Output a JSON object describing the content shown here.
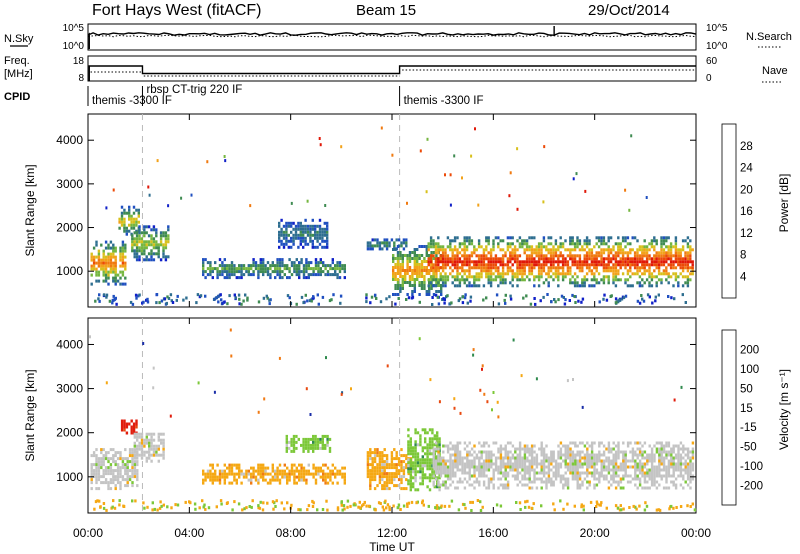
{
  "header": {
    "station": "Fort Hays West (fitACF)",
    "beam": "Beam 15",
    "date": "29/Oct/2014"
  },
  "sky_panel": {
    "left_label": "N.Sky",
    "left_ticks": [
      "10^5",
      "10^0"
    ],
    "right_label": "N.Search",
    "right_ticks": [
      "10^5",
      "10^0"
    ]
  },
  "freq_panel": {
    "left_label_line1": "Freq.",
    "left_label_line2": "[MHz]",
    "left_ticks": [
      "18",
      "8"
    ],
    "right_label": "Nave",
    "right_ticks": [
      "60",
      "0"
    ]
  },
  "cpid_panel": {
    "label": "CPID",
    "segments": [
      {
        "start_hour": 0.0,
        "text": "themis -3300 IF"
      },
      {
        "start_hour": 2.15,
        "text": "rbsp CT-trig 220 IF"
      },
      {
        "start_hour": 12.3,
        "text": "themis -3300 IF"
      }
    ]
  },
  "time_axis": {
    "ticks": [
      "00:00",
      "04:00",
      "08:00",
      "12:00",
      "16:00",
      "20:00",
      "00:00"
    ],
    "label": "Time UT"
  },
  "power_panel": {
    "ylabel": "Slant Range [km]",
    "yticks": [
      "4000",
      "3000",
      "2000",
      "1000"
    ],
    "colorbar_label": "Power [dB]",
    "colorbar_ticks": [
      "28",
      "24",
      "20",
      "16",
      "12",
      "8",
      "4"
    ],
    "colors": [
      "#1020c8",
      "#2050c0",
      "#2e6e90",
      "#3f8b52",
      "#75b640",
      "#d8c01c",
      "#f2a21a",
      "#f07a10",
      "#ec4a08",
      "#e01808"
    ]
  },
  "velocity_panel": {
    "ylabel": "Slant Range [km]",
    "yticks": [
      "4000",
      "3000",
      "2000",
      "1000"
    ],
    "colorbar_label": "Velocity [m s⁻¹]",
    "colorbar_ticks": [
      "200",
      "100",
      "50",
      "15",
      "-15",
      "-50",
      "-100",
      "-200"
    ],
    "colors": [
      "#1a2ea8",
      "#1f5c8e",
      "#2f8a4e",
      "#7cc838",
      "#c4c4c4",
      "#f5a814",
      "#f07a14",
      "#e84a10",
      "#e01c0c"
    ]
  },
  "chart_data": [
    {
      "type": "heatmap",
      "title": "Power [dB]",
      "xlabel": "Time UT",
      "ylabel": "Slant Range [km]",
      "xlim_hours": [
        0,
        24
      ],
      "ylim_km": [
        180,
        4600
      ],
      "clim": [
        0,
        30
      ],
      "regions": [
        {
          "t0": 0.1,
          "t1": 1.5,
          "r0": 700,
          "r1": 1700,
          "peak_db": 24
        },
        {
          "t0": 1.2,
          "t1": 2.1,
          "r0": 1800,
          "r1": 2500,
          "peak_db": 18
        },
        {
          "t0": 1.7,
          "t1": 3.2,
          "r0": 1250,
          "r1": 2050,
          "peak_db": 16
        },
        {
          "t0": 4.5,
          "t1": 10.2,
          "r0": 850,
          "r1": 1300,
          "peak_db": 12
        },
        {
          "t0": 7.5,
          "t1": 9.5,
          "r0": 1500,
          "r1": 2200,
          "peak_db": 8
        },
        {
          "t0": 11.0,
          "t1": 12.6,
          "r0": 1450,
          "r1": 1750,
          "peak_db": 10
        },
        {
          "t0": 12.0,
          "t1": 14.0,
          "r0": 400,
          "r1": 1600,
          "peak_db": 22
        },
        {
          "t0": 13.4,
          "t1": 23.9,
          "r0": 650,
          "r1": 1800,
          "peak_db": 30
        }
      ]
    },
    {
      "type": "heatmap",
      "title": "Velocity [m s⁻¹]",
      "xlabel": "Time UT",
      "ylabel": "Slant Range [km]",
      "xlim_hours": [
        0,
        24
      ],
      "ylim_km": [
        180,
        4600
      ],
      "clim": [
        -200,
        200
      ],
      "regions": [
        {
          "t0": 0.1,
          "t1": 2.0,
          "r0": 700,
          "r1": 1650,
          "velocity": -10
        },
        {
          "t0": 1.3,
          "t1": 2.0,
          "r0": 1950,
          "r1": 2300,
          "velocity": -200
        },
        {
          "t0": 1.8,
          "t1": 3.0,
          "r0": 1300,
          "r1": 2000,
          "velocity": -10
        },
        {
          "t0": 4.5,
          "t1": 10.2,
          "r0": 850,
          "r1": 1300,
          "velocity": -50
        },
        {
          "t0": 7.8,
          "t1": 9.6,
          "r0": 1550,
          "r1": 1950,
          "velocity": 50
        },
        {
          "t0": 11.0,
          "t1": 12.8,
          "r0": 700,
          "r1": 1650,
          "velocity": -50
        },
        {
          "t0": 12.6,
          "t1": 13.9,
          "r0": 700,
          "r1": 2100,
          "velocity": 50
        },
        {
          "t0": 13.6,
          "t1": 23.9,
          "r0": 700,
          "r1": 1800,
          "velocity": 0
        }
      ]
    }
  ]
}
